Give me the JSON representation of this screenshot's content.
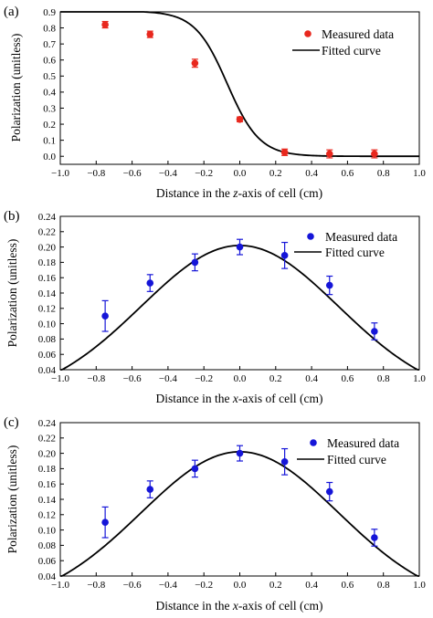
{
  "chart_data": [
    {
      "type": "scatter",
      "panel_label": "(a)",
      "xlabel": {
        "pre": "Distance in the ",
        "italic": "z",
        "post": "-axis of cell (cm)"
      },
      "ylabel": "Polarization (unitless)",
      "xlim": [
        -1.0,
        1.0
      ],
      "ylim": [
        -0.05,
        0.9
      ],
      "xticks": [
        -1.0,
        -0.8,
        -0.6,
        -0.4,
        -0.2,
        0.0,
        0.2,
        0.4,
        0.6,
        0.8,
        1.0
      ],
      "yticks": [
        0.0,
        0.1,
        0.2,
        0.3,
        0.4,
        0.5,
        0.6,
        0.7,
        0.8,
        0.9
      ],
      "xtick_labels": [
        "−1.0",
        "−0.8",
        "−0.6",
        "−0.4",
        "−0.2",
        "0.0",
        "0.2",
        "0.4",
        "0.6",
        "0.8",
        "1.0"
      ],
      "ytick_labels": [
        "0.0",
        "0.1",
        "0.2",
        "0.3",
        "0.4",
        "0.5",
        "0.6",
        "0.7",
        "0.8",
        "0.9"
      ],
      "legend": {
        "position": "top-right",
        "measured": "Measured data",
        "fitted": "Fitted curve"
      },
      "point_color": "#e8281e",
      "curve_color": "#000000",
      "curve_model": "sigmoid",
      "curve_params": {
        "top": 0.905,
        "center": -0.07,
        "width": 0.09
      },
      "series": [
        {
          "name": "Measured data",
          "x": [
            -0.75,
            -0.5,
            -0.25,
            0.0,
            0.25,
            0.5,
            0.75
          ],
          "y": [
            0.82,
            0.76,
            0.58,
            0.23,
            0.025,
            0.015,
            0.015
          ],
          "yerr": [
            0.02,
            0.02,
            0.025,
            0.015,
            0.02,
            0.025,
            0.025
          ]
        }
      ]
    },
    {
      "type": "scatter",
      "panel_label": "(b)",
      "xlabel": {
        "pre": "Distance in the ",
        "italic": "x",
        "post": "-axis of cell (cm)"
      },
      "ylabel": "Polarization (unitless)",
      "xlim": [
        -1.0,
        1.0
      ],
      "ylim": [
        0.04,
        0.24
      ],
      "xticks": [
        -1.0,
        -0.8,
        -0.6,
        -0.4,
        -0.2,
        0.0,
        0.2,
        0.4,
        0.6,
        0.8,
        1.0
      ],
      "yticks": [
        0.04,
        0.06,
        0.08,
        0.1,
        0.12,
        0.14,
        0.16,
        0.18,
        0.2,
        0.22,
        0.24
      ],
      "xtick_labels": [
        "−1.0",
        "−0.8",
        "−0.6",
        "−0.4",
        "−0.2",
        "0.0",
        "0.2",
        "0.4",
        "0.6",
        "0.8",
        "1.0"
      ],
      "ytick_labels": [
        "0.04",
        "0.06",
        "0.08",
        "0.10",
        "0.12",
        "0.14",
        "0.16",
        "0.18",
        "0.20",
        "0.22",
        "0.24"
      ],
      "legend": {
        "position": "top-right",
        "measured": "Measured data",
        "fitted": "Fitted curve"
      },
      "point_color": "#1515d8",
      "curve_color": "#000000",
      "curve_model": "gaussian",
      "curve_params": {
        "amplitude": 0.202,
        "sigma": 0.55
      },
      "series": [
        {
          "name": "Measured data",
          "x": [
            -0.75,
            -0.5,
            -0.25,
            0.0,
            0.25,
            0.5,
            0.75
          ],
          "y": [
            0.11,
            0.153,
            0.18,
            0.2,
            0.189,
            0.15,
            0.09
          ],
          "yerr": [
            0.02,
            0.011,
            0.011,
            0.01,
            0.017,
            0.012,
            0.011
          ]
        }
      ]
    },
    {
      "type": "scatter",
      "panel_label": "(c)",
      "xlabel": {
        "pre": "Distance in the ",
        "italic": "x",
        "post": "-axis of cell (cm)"
      },
      "ylabel": "Polarization (unitless)",
      "xlim": [
        -1.0,
        1.0
      ],
      "ylim": [
        0.04,
        0.24
      ],
      "xticks": [
        -1.0,
        -0.8,
        -0.6,
        -0.4,
        -0.2,
        0.0,
        0.2,
        0.4,
        0.6,
        0.8,
        1.0
      ],
      "yticks": [
        0.04,
        0.06,
        0.08,
        0.1,
        0.12,
        0.14,
        0.16,
        0.18,
        0.2,
        0.22,
        0.24
      ],
      "xtick_labels": [
        "−1.0",
        "−0.8",
        "−0.6",
        "−0.4",
        "−0.2",
        "0.0",
        "0.2",
        "0.4",
        "0.6",
        "0.8",
        "1.0"
      ],
      "ytick_labels": [
        "0.04",
        "0.06",
        "0.08",
        "0.10",
        "0.12",
        "0.14",
        "0.16",
        "0.18",
        "0.20",
        "0.22",
        "0.24"
      ],
      "legend": {
        "position": "top-right",
        "measured": "Measured data",
        "fitted": "Fitted curve"
      },
      "point_color": "#1515d8",
      "curve_color": "#000000",
      "curve_model": "gaussian",
      "curve_params": {
        "amplitude": 0.202,
        "sigma": 0.55
      },
      "series": [
        {
          "name": "Measured data",
          "x": [
            -0.75,
            -0.5,
            -0.25,
            0.0,
            0.25,
            0.5,
            0.75
          ],
          "y": [
            0.11,
            0.153,
            0.18,
            0.2,
            0.189,
            0.15,
            0.09
          ],
          "yerr": [
            0.02,
            0.011,
            0.011,
            0.01,
            0.017,
            0.012,
            0.011
          ]
        }
      ]
    }
  ]
}
